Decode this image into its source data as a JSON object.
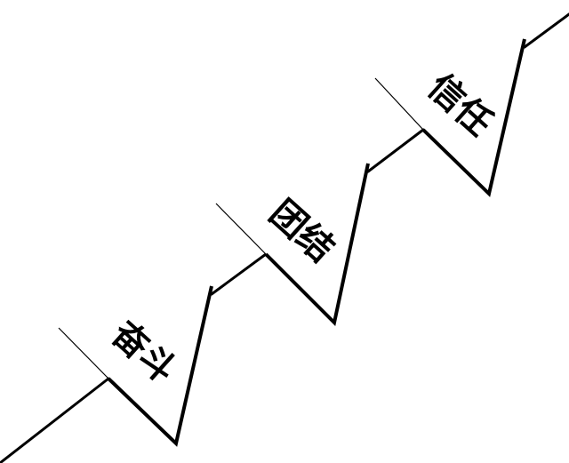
{
  "pennants": [
    {
      "label": "奋斗"
    },
    {
      "label": "团结"
    },
    {
      "label": "信任"
    }
  ],
  "colors": {
    "line": "#000000",
    "fill": "#ffffff",
    "text": "#000000"
  }
}
